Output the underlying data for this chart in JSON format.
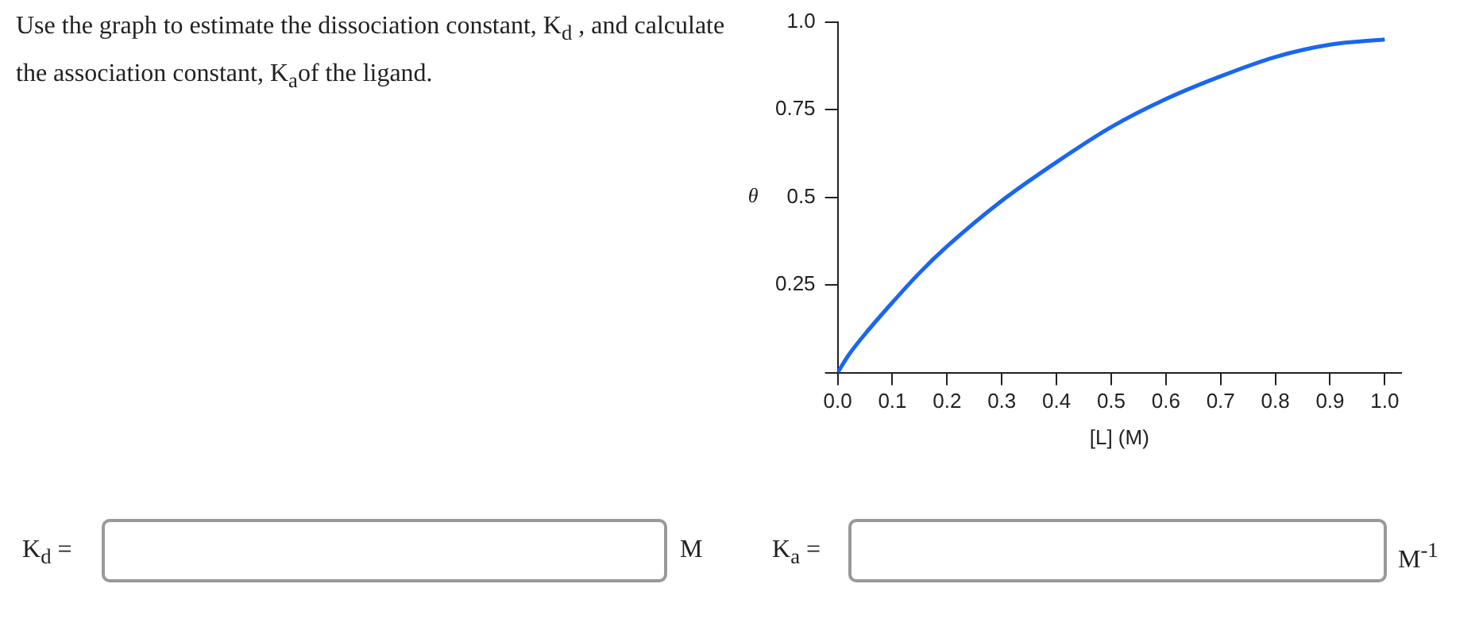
{
  "chart_data": {
    "type": "line",
    "title": "Use the graph to estimate the dissociation constant, K$_{d}$ , and calculate the association constant, K$_{a}$of the  ligand.",
    "xlabel": "[L] (M)",
    "ylabel": "θ",
    "x": [
      0,
      0.02,
      0.05,
      0.1,
      0.15,
      0.2,
      0.3,
      0.4,
      0.5,
      0.6,
      0.7,
      0.8,
      0.9,
      1.0
    ],
    "series": [
      {
        "color": "#1a66f0",
        "values": [
          0,
          0.05,
          0.11,
          0.2,
          0.285,
          0.36,
          0.49,
          0.6,
          0.7,
          0.78,
          0.845,
          0.9,
          0.935,
          0.95
        ]
      }
    ],
    "xlim": [
      0,
      1.03
    ],
    "ylim": [
      0,
      1
    ],
    "xticks": [
      {
        "value": 0,
        "label": "0.0"
      },
      0.1,
      0.2,
      0.3,
      0.4,
      0.5,
      0.6,
      0.7,
      0.8,
      0.9,
      {
        "value": 1,
        "label": "1.0"
      }
    ],
    "yticks": [
      {
        "value": 0,
        "label": null
      },
      0.25,
      0.5,
      0.75,
      {
        "value": 1,
        "label": "1.0"
      }
    ],
    "grid": false,
    "legend": false,
    "marker": "none",
    "line_style": "solid",
    "annotations": [
      "K$_{d}$ =",
      "M",
      "K$_{a}$ =",
      "M$^{-1}$"
    ]
  }
}
